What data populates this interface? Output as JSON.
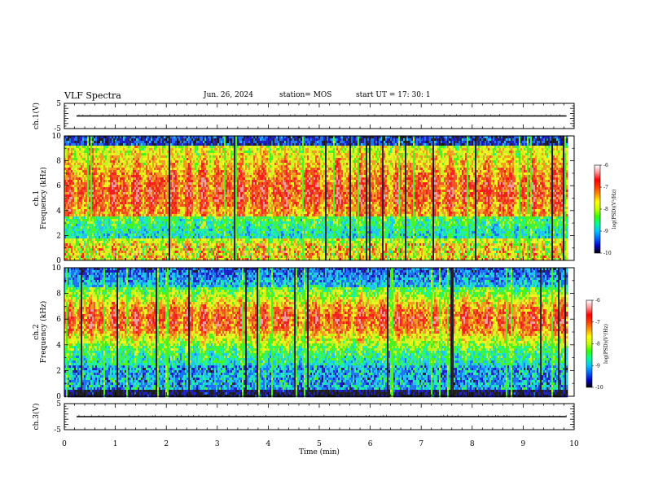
{
  "header": {
    "title": "VLF Spectra",
    "date": "Jun. 26, 2024",
    "station": "station= MOS",
    "start_ut": "start  UT  =   17: 30: 1"
  },
  "colors": {
    "colormap": [
      "#000000",
      "#0000c8",
      "#0064ff",
      "#00c8ff",
      "#00ff96",
      "#32ff00",
      "#c8ff00",
      "#ffff00",
      "#ff9600",
      "#ff3c00",
      "#ff0000",
      "#ff9696",
      "#ffffff"
    ]
  },
  "chart_data": [
    {
      "type": "line",
      "name": "waveform-ch1",
      "ylabel": "ch.1(V)",
      "yticks": [
        "5",
        "-5"
      ],
      "ylim": [
        -5,
        5
      ],
      "xlim": [
        0,
        10
      ],
      "baseline_value": 0,
      "data_end_x": 9.85
    },
    {
      "type": "heatmap",
      "name": "spectrogram-ch1",
      "ylabel": "ch.1\nFrequency (kHz)",
      "yticks": [
        "0",
        "2",
        "4",
        "6",
        "8",
        "10"
      ],
      "ylim": [
        0,
        10
      ],
      "xlim": [
        0,
        10
      ],
      "data_end_x": 9.85,
      "colorbar": {
        "label": "log(PSD)(V²/Hz)",
        "ticks": [
          "-6",
          "-7",
          "-8",
          "-9",
          "-10"
        ],
        "range": [
          -10,
          -6
        ]
      }
    },
    {
      "type": "heatmap",
      "name": "spectrogram-ch2",
      "ylabel": "ch.2\nFrequency (kHz)",
      "yticks": [
        "0",
        "2",
        "4",
        "6",
        "8",
        "10"
      ],
      "ylim": [
        0,
        10
      ],
      "xlim": [
        0,
        10
      ],
      "data_end_x": 9.85,
      "colorbar": {
        "label": "log(PSD)(V²/Hz)",
        "ticks": [
          "-6",
          "-7",
          "-8",
          "-9",
          "-10"
        ],
        "range": [
          -10,
          -6
        ]
      }
    },
    {
      "type": "line",
      "name": "waveform-ch3",
      "ylabel": "ch.3(V)",
      "yticks": [
        "5",
        "-5"
      ],
      "ylim": [
        -5,
        5
      ],
      "xlim": [
        0,
        10
      ],
      "baseline_value": 0,
      "data_end_x": 9.85,
      "xlabel": "Time  (min)",
      "xticks": [
        "0",
        "1",
        "2",
        "3",
        "4",
        "5",
        "6",
        "7",
        "8",
        "9",
        "10"
      ]
    }
  ]
}
